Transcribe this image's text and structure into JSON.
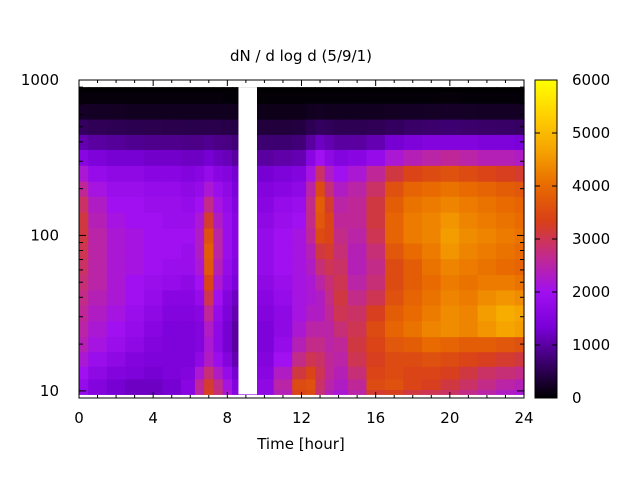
{
  "chart_data": {
    "type": "heatmap",
    "title": "dN / d log d (5/9/1)",
    "xlabel": "Time [hour]",
    "ylabel": "",
    "x_ticks": [
      "0",
      "4",
      "8",
      "12",
      "16",
      "20",
      "24"
    ],
    "x_tick_values": [
      0,
      4,
      8,
      12,
      16,
      20,
      24
    ],
    "xlim": [
      0,
      24
    ],
    "y_scale": "log",
    "y_ticks": [
      "10",
      "100",
      "1000"
    ],
    "y_tick_values": [
      10,
      100,
      1000
    ],
    "ylim": [
      9,
      1000
    ],
    "colorbar": {
      "ticks": [
        "0",
        "1000",
        "2000",
        "3000",
        "4000",
        "5000",
        "6000"
      ],
      "tick_values": [
        0,
        1000,
        2000,
        3000,
        4000,
        5000,
        6000
      ],
      "range": [
        0,
        6000
      ],
      "palette": [
        "#000000",
        "#3a006a",
        "#7a00d8",
        "#a010f0",
        "#c22a8e",
        "#d84018",
        "#e86a00",
        "#f5a300",
        "#ffd000",
        "#ffff00"
      ]
    },
    "missing_data_interval": [
      8.6,
      9.6
    ],
    "times": [
      0,
      1,
      2,
      3,
      4,
      5,
      6,
      6.5,
      7,
      7.5,
      8,
      8.5,
      10,
      11,
      12,
      12.5,
      13,
      13.5,
      14,
      15,
      16,
      17,
      18,
      19,
      20,
      21,
      22,
      23,
      24
    ],
    "diameters": [
      9.5,
      11,
      13,
      16,
      20,
      25,
      32,
      40,
      50,
      63,
      80,
      100,
      125,
      160,
      200,
      250,
      320,
      400,
      500,
      630,
      800,
      900
    ],
    "values": [
      [
        1800,
        1800,
        2000,
        2200,
        2400,
        2500,
        2600,
        2700,
        2800,
        2900,
        3000,
        3100,
        3100,
        2900,
        2600,
        2200,
        1600,
        1100,
        600,
        250,
        60,
        10
      ],
      [
        1500,
        1500,
        1700,
        1900,
        2100,
        2200,
        2300,
        2400,
        2500,
        2500,
        2500,
        2500,
        2400,
        2300,
        2100,
        1800,
        1400,
        1000,
        550,
        230,
        60,
        10
      ],
      [
        1300,
        1300,
        1500,
        1700,
        1900,
        2000,
        2100,
        2200,
        2200,
        2200,
        2200,
        2200,
        2100,
        2000,
        1900,
        1700,
        1300,
        950,
        520,
        220,
        60,
        10
      ],
      [
        1200,
        1200,
        1400,
        1500,
        1700,
        1800,
        1900,
        2000,
        2000,
        2100,
        2100,
        2100,
        2000,
        2000,
        1900,
        1700,
        1300,
        900,
        500,
        210,
        55,
        10
      ],
      [
        1200,
        1200,
        1300,
        1400,
        1500,
        1600,
        1700,
        1800,
        1900,
        2000,
        2000,
        2000,
        2000,
        1900,
        1800,
        1600,
        1250,
        880,
        490,
        200,
        55,
        10
      ],
      [
        1300,
        1300,
        1400,
        1400,
        1400,
        1400,
        1500,
        1600,
        1800,
        1900,
        2000,
        2000,
        1900,
        1900,
        1800,
        1600,
        1250,
        880,
        480,
        200,
        55,
        10
      ],
      [
        1600,
        1600,
        1500,
        1400,
        1400,
        1400,
        1500,
        1600,
        1700,
        1900,
        1900,
        2000,
        1900,
        1800,
        1700,
        1500,
        1200,
        850,
        470,
        200,
        55,
        10
      ],
      [
        2500,
        2600,
        2200,
        1700,
        1500,
        1500,
        1600,
        1800,
        2000,
        2200,
        2300,
        2300,
        2200,
        2000,
        1800,
        1600,
        1200,
        850,
        470,
        200,
        55,
        10
      ],
      [
        3300,
        3200,
        2800,
        2300,
        2200,
        2300,
        2600,
        3000,
        3400,
        3700,
        3800,
        3600,
        3200,
        2700,
        2200,
        1800,
        1300,
        900,
        480,
        200,
        55,
        10
      ],
      [
        2800,
        2700,
        2300,
        1900,
        1700,
        1700,
        1800,
        2000,
        2200,
        2400,
        2500,
        2500,
        2300,
        2100,
        1900,
        1600,
        1200,
        850,
        470,
        200,
        55,
        10
      ],
      [
        2200,
        2100,
        1800,
        1500,
        1300,
        1300,
        1400,
        1500,
        1700,
        1800,
        1900,
        1900,
        1900,
        1800,
        1700,
        1500,
        1150,
        820,
        460,
        190,
        50,
        10
      ],
      [
        1600,
        1500,
        1300,
        1100,
        1000,
        1000,
        1100,
        1200,
        1400,
        1500,
        1600,
        1600,
        1600,
        1500,
        1400,
        1300,
        1000,
        750,
        430,
        180,
        50,
        10
      ],
      [
        1700,
        1700,
        1600,
        1500,
        1400,
        1400,
        1500,
        1600,
        1700,
        1800,
        1800,
        1800,
        1700,
        1600,
        1500,
        1300,
        1000,
        700,
        380,
        150,
        40,
        8
      ],
      [
        2400,
        2500,
        2300,
        2000,
        1800,
        1700,
        1700,
        1800,
        1900,
        2000,
        2000,
        2000,
        1900,
        1800,
        1600,
        1400,
        1050,
        700,
        380,
        150,
        40,
        8
      ],
      [
        3400,
        3500,
        3100,
        2700,
        2400,
        2200,
        2100,
        2100,
        2100,
        2100,
        2100,
        2100,
        2000,
        1900,
        1700,
        1500,
        1100,
        750,
        400,
        160,
        40,
        8
      ],
      [
        3500,
        3600,
        3400,
        3000,
        2700,
        2500,
        2300,
        2200,
        2200,
        2300,
        2400,
        2600,
        2700,
        2700,
        2500,
        2100,
        1600,
        1000,
        520,
        200,
        45,
        8
      ],
      [
        2800,
        2900,
        3000,
        2900,
        2700,
        2500,
        2300,
        2300,
        2500,
        2800,
        3100,
        3500,
        3700,
        3800,
        3500,
        2900,
        2000,
        1200,
        600,
        220,
        50,
        8
      ],
      [
        2400,
        2500,
        2600,
        2600,
        2500,
        2500,
        2600,
        2700,
        2800,
        3000,
        3200,
        3400,
        3400,
        3200,
        2800,
        2300,
        1700,
        1100,
        560,
        210,
        50,
        8
      ],
      [
        2200,
        2300,
        2400,
        2500,
        2600,
        2800,
        3000,
        3100,
        3000,
        2900,
        2800,
        2700,
        2600,
        2500,
        2300,
        2000,
        1500,
        1000,
        520,
        200,
        45,
        8
      ],
      [
        2500,
        2600,
        2800,
        3000,
        3100,
        3000,
        2900,
        2700,
        2500,
        2400,
        2400,
        2500,
        2600,
        2600,
        2500,
        2200,
        1600,
        1000,
        520,
        200,
        45,
        8
      ],
      [
        3200,
        3500,
        3400,
        3300,
        3400,
        3500,
        3300,
        3000,
        2800,
        2700,
        2800,
        3000,
        3100,
        3100,
        2900,
        2600,
        1800,
        1100,
        550,
        210,
        45,
        8
      ],
      [
        3300,
        3600,
        3500,
        3500,
        3700,
        3900,
        3800,
        3600,
        3500,
        3500,
        3700,
        3900,
        3900,
        3800,
        3600,
        3100,
        2200,
        1300,
        600,
        220,
        50,
        8
      ],
      [
        3100,
        3400,
        3400,
        3500,
        3800,
        4100,
        4000,
        3900,
        3800,
        3800,
        4000,
        4200,
        4200,
        4100,
        3900,
        3400,
        2400,
        1400,
        650,
        230,
        50,
        8
      ],
      [
        3000,
        3300,
        3400,
        3600,
        4000,
        4300,
        4200,
        4100,
        4000,
        4100,
        4200,
        4300,
        4300,
        4200,
        4000,
        3500,
        2500,
        1500,
        680,
        240,
        50,
        8
      ],
      [
        2900,
        3100,
        3300,
        3500,
        3900,
        4400,
        4400,
        4300,
        4200,
        4300,
        4500,
        4600,
        4500,
        4300,
        4100,
        3600,
        2600,
        1500,
        700,
        250,
        55,
        8
      ],
      [
        2700,
        2900,
        3100,
        3400,
        3800,
        4300,
        4300,
        4200,
        4100,
        4200,
        4300,
        4400,
        4300,
        4200,
        4000,
        3500,
        2500,
        1500,
        680,
        240,
        50,
        8
      ],
      [
        2500,
        2700,
        2900,
        3300,
        3800,
        4500,
        4600,
        4400,
        4200,
        4100,
        4200,
        4300,
        4200,
        4100,
        3900,
        3400,
        2400,
        1400,
        650,
        230,
        50,
        8
      ],
      [
        2300,
        2500,
        2800,
        3200,
        3700,
        4700,
        4800,
        4500,
        4200,
        4000,
        4100,
        4200,
        4100,
        4000,
        3800,
        3300,
        2400,
        1400,
        640,
        230,
        50,
        8
      ],
      [
        2200,
        2400,
        2700,
        3100,
        3600,
        4600,
        4700,
        4400,
        4100,
        3900,
        4000,
        4100,
        4000,
        3900,
        3700,
        3200,
        2300,
        1350,
        620,
        220,
        50,
        8
      ]
    ]
  }
}
